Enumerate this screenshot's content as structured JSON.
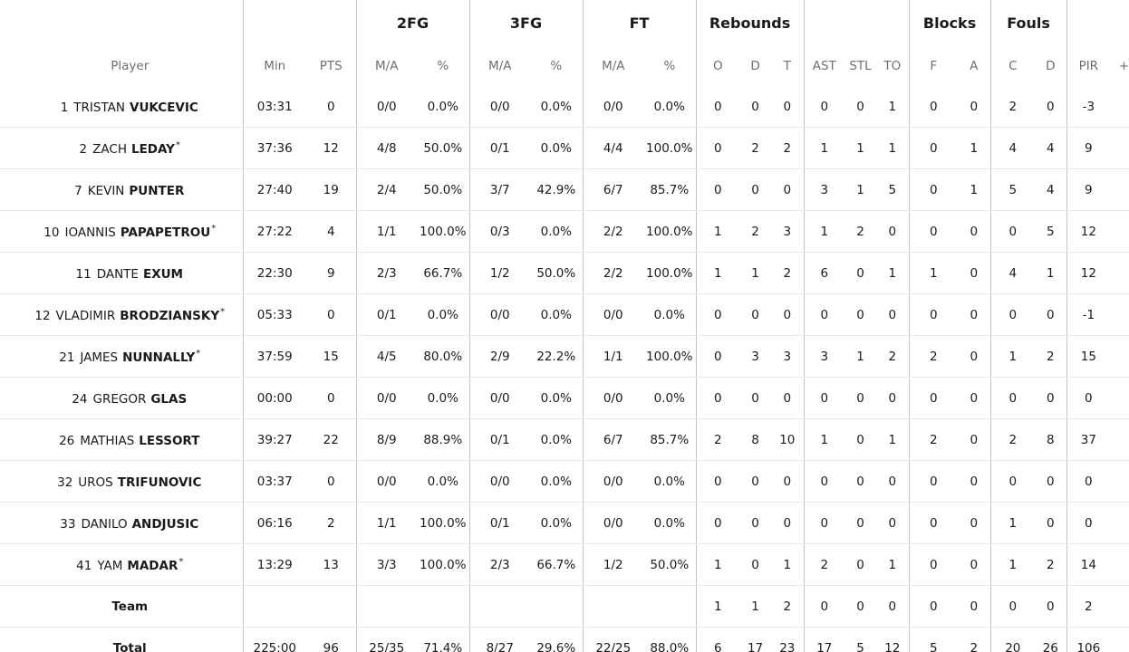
{
  "groups": {
    "fg2": "2FG",
    "fg3": "3FG",
    "ft": "FT",
    "rebounds": "Rebounds",
    "blocks": "Blocks",
    "fouls": "Fouls"
  },
  "columns": [
    "Player",
    "Min",
    "PTS",
    "M/A",
    "%",
    "M/A",
    "%",
    "M/A",
    "%",
    "O",
    "D",
    "T",
    "AST",
    "STL",
    "TO",
    "F",
    "A",
    "C",
    "D",
    "PIR",
    "+/-"
  ],
  "players": [
    {
      "num": "1",
      "first": "TRISTAN",
      "last": "VUKCEVIC",
      "star": "",
      "stats": [
        "03:31",
        "0",
        "0/0",
        "0.0%",
        "0/0",
        "0.0%",
        "0/0",
        "0.0%",
        "0",
        "0",
        "0",
        "0",
        "0",
        "1",
        "0",
        "0",
        "2",
        "0",
        "-3",
        ""
      ]
    },
    {
      "num": "2",
      "first": "ZACH",
      "last": "LEDAY",
      "star": "*",
      "stats": [
        "37:36",
        "12",
        "4/8",
        "50.0%",
        "0/1",
        "0.0%",
        "4/4",
        "100.0%",
        "0",
        "2",
        "2",
        "1",
        "1",
        "1",
        "0",
        "1",
        "4",
        "4",
        "9",
        ""
      ]
    },
    {
      "num": "7",
      "first": "KEVIN",
      "last": "PUNTER",
      "star": "",
      "stats": [
        "27:40",
        "19",
        "2/4",
        "50.0%",
        "3/7",
        "42.9%",
        "6/7",
        "85.7%",
        "0",
        "0",
        "0",
        "3",
        "1",
        "5",
        "0",
        "1",
        "5",
        "4",
        "9",
        ""
      ]
    },
    {
      "num": "10",
      "first": "IOANNIS",
      "last": "PAPAPETROU",
      "star": "*",
      "stats": [
        "27:22",
        "4",
        "1/1",
        "100.0%",
        "0/3",
        "0.0%",
        "2/2",
        "100.0%",
        "1",
        "2",
        "3",
        "1",
        "2",
        "0",
        "0",
        "0",
        "0",
        "5",
        "12",
        ""
      ]
    },
    {
      "num": "11",
      "first": "DANTE",
      "last": "EXUM",
      "star": "",
      "stats": [
        "22:30",
        "9",
        "2/3",
        "66.7%",
        "1/2",
        "50.0%",
        "2/2",
        "100.0%",
        "1",
        "1",
        "2",
        "6",
        "0",
        "1",
        "1",
        "0",
        "4",
        "1",
        "12",
        ""
      ]
    },
    {
      "num": "12",
      "first": "VLADIMIR",
      "last": "BRODZIANSKY",
      "star": "*",
      "stats": [
        "05:33",
        "0",
        "0/1",
        "0.0%",
        "0/0",
        "0.0%",
        "0/0",
        "0.0%",
        "0",
        "0",
        "0",
        "0",
        "0",
        "0",
        "0",
        "0",
        "0",
        "0",
        "-1",
        ""
      ]
    },
    {
      "num": "21",
      "first": "JAMES",
      "last": "NUNNALLY",
      "star": "*",
      "stats": [
        "37:59",
        "15",
        "4/5",
        "80.0%",
        "2/9",
        "22.2%",
        "1/1",
        "100.0%",
        "0",
        "3",
        "3",
        "3",
        "1",
        "2",
        "2",
        "0",
        "1",
        "2",
        "15",
        ""
      ]
    },
    {
      "num": "24",
      "first": "GREGOR",
      "last": "GLAS",
      "star": "",
      "stats": [
        "00:00",
        "0",
        "0/0",
        "0.0%",
        "0/0",
        "0.0%",
        "0/0",
        "0.0%",
        "0",
        "0",
        "0",
        "0",
        "0",
        "0",
        "0",
        "0",
        "0",
        "0",
        "0",
        ""
      ]
    },
    {
      "num": "26",
      "first": "MATHIAS",
      "last": "LESSORT",
      "star": "",
      "stats": [
        "39:27",
        "22",
        "8/9",
        "88.9%",
        "0/1",
        "0.0%",
        "6/7",
        "85.7%",
        "2",
        "8",
        "10",
        "1",
        "0",
        "1",
        "2",
        "0",
        "2",
        "8",
        "37",
        ""
      ]
    },
    {
      "num": "32",
      "first": "UROS",
      "last": "TRIFUNOVIC",
      "star": "",
      "stats": [
        "03:37",
        "0",
        "0/0",
        "0.0%",
        "0/0",
        "0.0%",
        "0/0",
        "0.0%",
        "0",
        "0",
        "0",
        "0",
        "0",
        "0",
        "0",
        "0",
        "0",
        "0",
        "0",
        ""
      ]
    },
    {
      "num": "33",
      "first": "DANILO",
      "last": "ANDJUSIC",
      "star": "",
      "stats": [
        "06:16",
        "2",
        "1/1",
        "100.0%",
        "0/1",
        "0.0%",
        "0/0",
        "0.0%",
        "0",
        "0",
        "0",
        "0",
        "0",
        "0",
        "0",
        "0",
        "1",
        "0",
        "0",
        ""
      ]
    },
    {
      "num": "41",
      "first": "YAM",
      "last": "MADAR",
      "star": "*",
      "stats": [
        "13:29",
        "13",
        "3/3",
        "100.0%",
        "2/3",
        "66.7%",
        "1/2",
        "50.0%",
        "1",
        "0",
        "1",
        "2",
        "0",
        "1",
        "0",
        "0",
        "1",
        "2",
        "14",
        ""
      ]
    }
  ],
  "team": {
    "label": "Team",
    "stats": [
      "",
      "",
      "",
      "",
      "",
      "",
      "",
      "",
      "1",
      "1",
      "2",
      "0",
      "0",
      "0",
      "0",
      "0",
      "0",
      "0",
      "2",
      ""
    ]
  },
  "total": {
    "label": "Total",
    "stats": [
      "225:00",
      "96",
      "25/35",
      "71.4%",
      "8/27",
      "29.6%",
      "22/25",
      "88.0%",
      "6",
      "17",
      "23",
      "17",
      "5",
      "12",
      "5",
      "2",
      "20",
      "26",
      "106",
      ""
    ]
  }
}
